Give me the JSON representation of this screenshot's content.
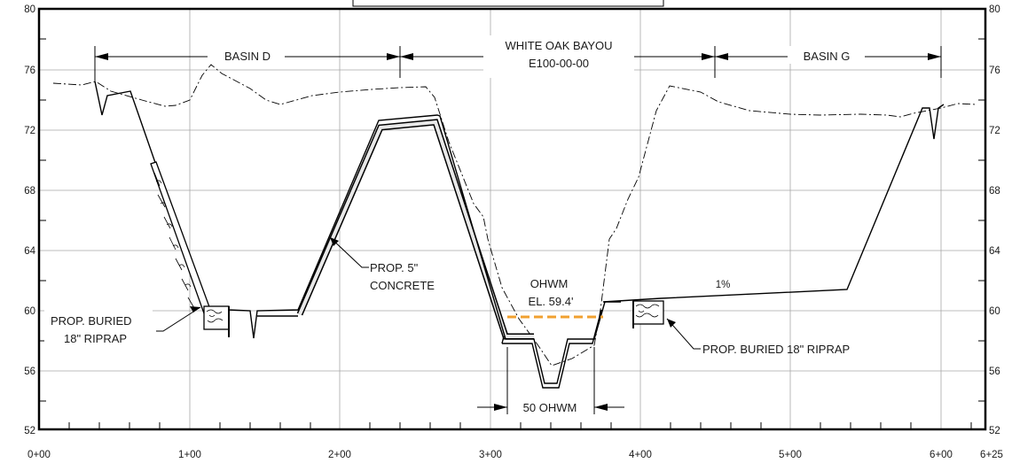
{
  "labels": {
    "basin_d": "BASIN D",
    "white_oak_bayou_1": "WHITE OAK BAYOU",
    "white_oak_bayou_2": "E100-00-00",
    "basin_g": "BASIN G",
    "concrete_1": "PROP. 5\"",
    "concrete_2": "CONCRETE",
    "riprap_left_1": "PROP. BURIED",
    "riprap_left_2": "18\" RIPRAP",
    "riprap_right": "PROP. BURIED 18\" RIPRAP",
    "ohwm_1": "OHWM",
    "ohwm_2": "EL. 59.4'",
    "ohwm_width": "50 OHWM",
    "slope": "1%"
  },
  "axes": {
    "x_ticks": [
      "0+00",
      "1+00",
      "2+00",
      "3+00",
      "4+00",
      "5+00",
      "6+00",
      "6+25"
    ],
    "y_ticks_left": [
      "80",
      "76",
      "72",
      "68",
      "64",
      "60",
      "56",
      "52"
    ],
    "y_ticks_right": [
      "80",
      "76",
      "72",
      "68",
      "64",
      "60",
      "56",
      "52"
    ]
  },
  "colors": {
    "ohwm_line": "#f0a030",
    "line": "#000000",
    "grid": "#a8a8a8"
  }
}
